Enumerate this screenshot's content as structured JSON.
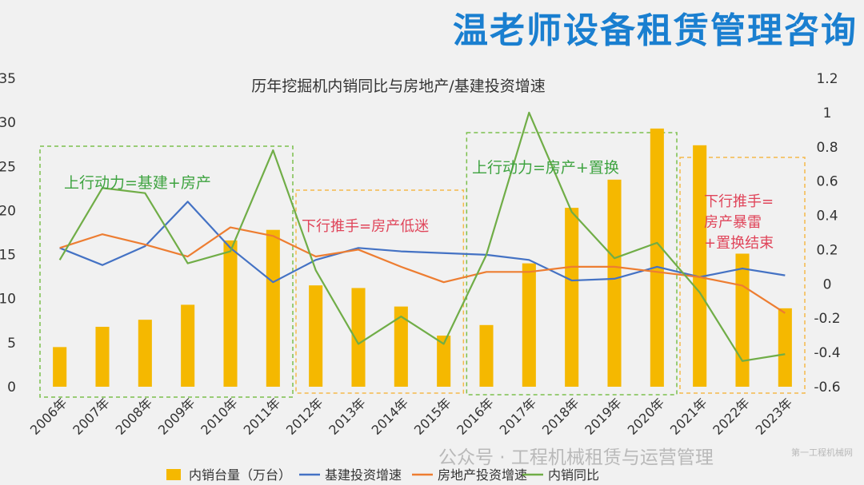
{
  "brand_title": "温老师设备租赁管理咨询",
  "watermark": "公众号 · 工程机械租赁与运营管理",
  "logo_text": "第一工程机械网",
  "colors": {
    "bar": "#f5b800",
    "infra": "#4472c4",
    "realestate": "#ed7d31",
    "yoy": "#70ad47",
    "green_box": "#7cc04d",
    "orange_box": "#f5b94a",
    "green_text": "#3ea340",
    "red_text": "#e0455a",
    "brand": "#1a7fd0"
  },
  "chart_data": {
    "type": "bar",
    "title": "历年挖掘机内销同比与房地产/基建投资增速",
    "categories": [
      "2006年",
      "2007年",
      "2008年",
      "2009年",
      "2010年",
      "2011年",
      "2012年",
      "2013年",
      "2014年",
      "2015年",
      "2016年",
      "2017年",
      "2018年",
      "2019年",
      "2020年",
      "2021年",
      "2022年",
      "2023年"
    ],
    "y_left": {
      "min": 0,
      "max": 35,
      "ticks": [
        "0",
        "5",
        "10",
        "15",
        "20",
        "25",
        "30",
        "35"
      ]
    },
    "y_right": {
      "min": -0.6,
      "max": 1.2,
      "ticks": [
        "-0.6",
        "-0.4",
        "-0.2",
        "0",
        "0.2",
        "0.4",
        "0.6",
        "0.8",
        "1",
        "1.2"
      ]
    },
    "grid": false,
    "legend_position": "bottom",
    "series": [
      {
        "name": "内销台量（万台）",
        "type": "bar",
        "axis": "left",
        "values": [
          4.5,
          6.8,
          7.6,
          9.3,
          16.6,
          17.8,
          11.5,
          11.2,
          9.1,
          5.8,
          7.0,
          14.0,
          20.3,
          23.5,
          29.3,
          27.4,
          15.1,
          8.9
        ]
      },
      {
        "name": "基建投资增速",
        "type": "line",
        "axis": "right",
        "values": [
          0.21,
          0.11,
          0.22,
          0.48,
          0.21,
          0.01,
          0.14,
          0.21,
          0.19,
          0.18,
          0.17,
          0.14,
          0.02,
          0.03,
          0.1,
          0.04,
          0.09,
          0.05
        ]
      },
      {
        "name": "房地产投资增速",
        "type": "line",
        "axis": "right",
        "values": [
          0.21,
          0.29,
          0.23,
          0.16,
          0.33,
          0.28,
          0.16,
          0.2,
          0.1,
          0.01,
          0.07,
          0.07,
          0.1,
          0.1,
          0.07,
          0.04,
          -0.01,
          -0.17
        ]
      },
      {
        "name": "内销同比",
        "type": "line",
        "axis": "right",
        "values": [
          0.14,
          0.56,
          0.53,
          0.12,
          0.19,
          0.78,
          0.08,
          -0.35,
          -0.19,
          -0.35,
          0.17,
          1.0,
          0.42,
          0.15,
          0.24,
          -0.05,
          -0.45,
          -0.41
        ]
      }
    ],
    "annotations": [
      {
        "text": "上行动力=基建+房产",
        "kind": "green"
      },
      {
        "text": "下行推手=房产低迷",
        "kind": "red"
      },
      {
        "text": "上行动力=房产+置换",
        "kind": "green"
      },
      {
        "text": "下行推手=\n房产暴雷\n+置换结束",
        "kind": "red"
      }
    ]
  }
}
